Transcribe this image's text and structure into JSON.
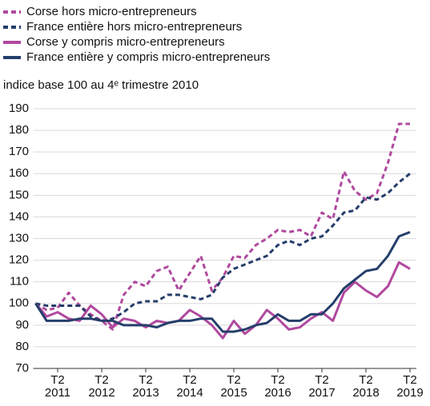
{
  "chart_data": {
    "type": "line",
    "subtitle": "indice base 100 au 4ᵉ trimestre 2010",
    "categories": [
      null,
      null,
      "T2 2011",
      null,
      null,
      null,
      "T2 2012",
      null,
      null,
      null,
      "T2 2013",
      null,
      null,
      null,
      "T2 2014",
      null,
      null,
      null,
      "T2 2015",
      null,
      null,
      null,
      "T2 2016",
      null,
      null,
      null,
      "T2 2017",
      null,
      null,
      null,
      "T2 2018",
      null,
      null,
      null,
      "T2 2019"
    ],
    "series": [
      {
        "name": "Corse hors micro-entrepreneurs",
        "color": "#b0499e",
        "dashed": true,
        "values": [
          100,
          97,
          98,
          105,
          99,
          95,
          92,
          88,
          104,
          110,
          108,
          115,
          117,
          106,
          114,
          122,
          106,
          112,
          122,
          121,
          127,
          130,
          134,
          133,
          134,
          131,
          142,
          139,
          161,
          152,
          148,
          151,
          165,
          183,
          183
        ]
      },
      {
        "name": "France entière hors micro-entrepreneurs",
        "color": "#253e6a",
        "dashed": true,
        "values": [
          100,
          99,
          99,
          99,
          99,
          94,
          92,
          93,
          96,
          100,
          101,
          101,
          104,
          104,
          103,
          102,
          104,
          112,
          116,
          118,
          120,
          122,
          127,
          129,
          127,
          130,
          131,
          136,
          142,
          143,
          149,
          148,
          151,
          156,
          160
        ]
      },
      {
        "name": "Corse y compris micro-entrepreneurs",
        "color": "#b0499e",
        "dashed": false,
        "values": [
          100,
          94,
          96,
          93,
          92,
          99,
          95,
          89,
          93,
          92,
          89,
          92,
          91,
          92,
          97,
          94,
          90,
          84,
          92,
          86,
          90,
          97,
          93,
          88,
          89,
          93,
          96,
          92,
          105,
          110,
          106,
          103,
          108,
          119,
          116
        ]
      },
      {
        "name": "France entière y compris micro-entrepreneurs",
        "color": "#253e6a",
        "dashed": false,
        "values": [
          100,
          92,
          92,
          92,
          93,
          93,
          92,
          92,
          90,
          90,
          90,
          89,
          91,
          92,
          92,
          93,
          93,
          87,
          87,
          88,
          90,
          91,
          95,
          92,
          92,
          95,
          95,
          100,
          107,
          111,
          115,
          116,
          122,
          131,
          133
        ]
      }
    ],
    "ylim": [
      70,
      190
    ],
    "yticks": [
      70,
      80,
      90,
      100,
      110,
      120,
      130,
      140,
      150,
      160,
      170,
      180,
      190
    ],
    "grid": true
  }
}
